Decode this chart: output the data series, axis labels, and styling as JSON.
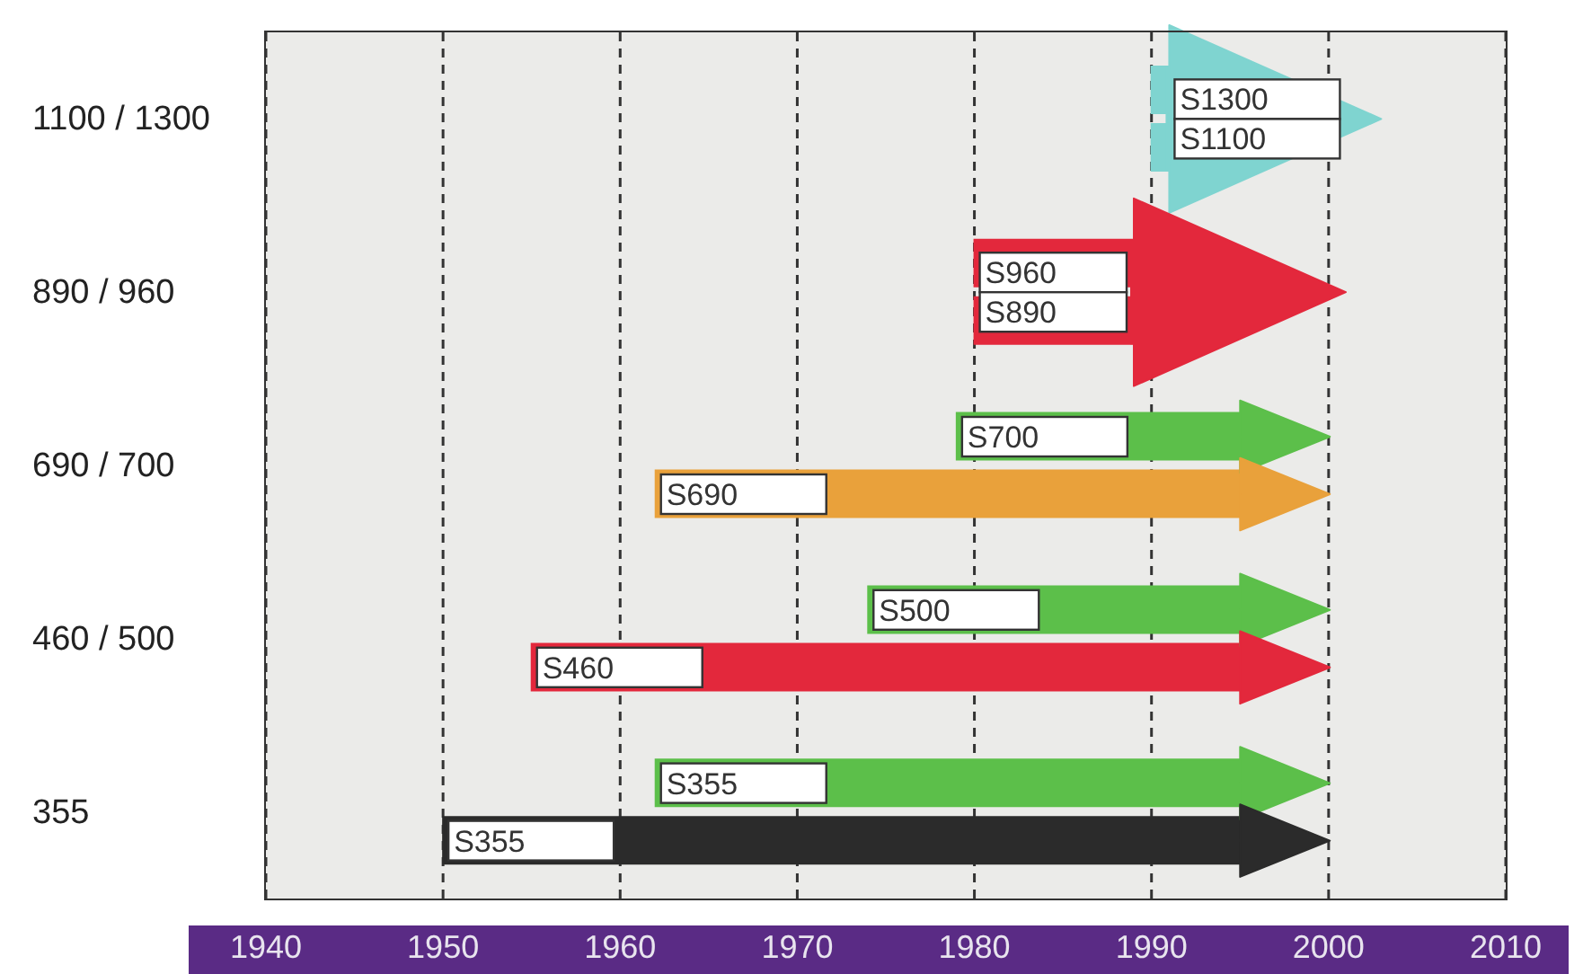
{
  "chart_data": {
    "type": "bar",
    "orientation": "horizontal",
    "categories": [
      "1100 / 1300",
      "890 / 960",
      "690 / 700",
      "460 / 500",
      "355"
    ],
    "series": [
      {
        "base": [
          1990,
          1980,
          1979,
          1974,
          1962
        ],
        "values": [
          1,
          9,
          16,
          21,
          33
        ],
        "colors": [
          "#7fd4d0",
          "#e3283c",
          "#5cbf4a",
          "#5cbf4a",
          "#5cbf4a"
        ],
        "value_labels": [
          "S1300",
          "S960",
          "S700",
          "S500",
          "S355"
        ]
      },
      {
        "base": [
          1990,
          1980,
          1962,
          1955,
          1950
        ],
        "values": [
          1,
          9,
          33,
          40,
          45
        ],
        "colors": [
          "#7fd4d0",
          "#e3283c",
          "#e9a13b",
          "#e3283c",
          "#2b2b2b"
        ],
        "value_labels": [
          "S1100",
          "S890",
          "S690",
          "S460",
          "S355"
        ]
      }
    ],
    "xlim": [
      1940,
      2010
    ],
    "xticks": [
      1940,
      1950,
      1960,
      1970,
      1980,
      1990,
      2000,
      2010
    ],
    "grid": "x"
  }
}
